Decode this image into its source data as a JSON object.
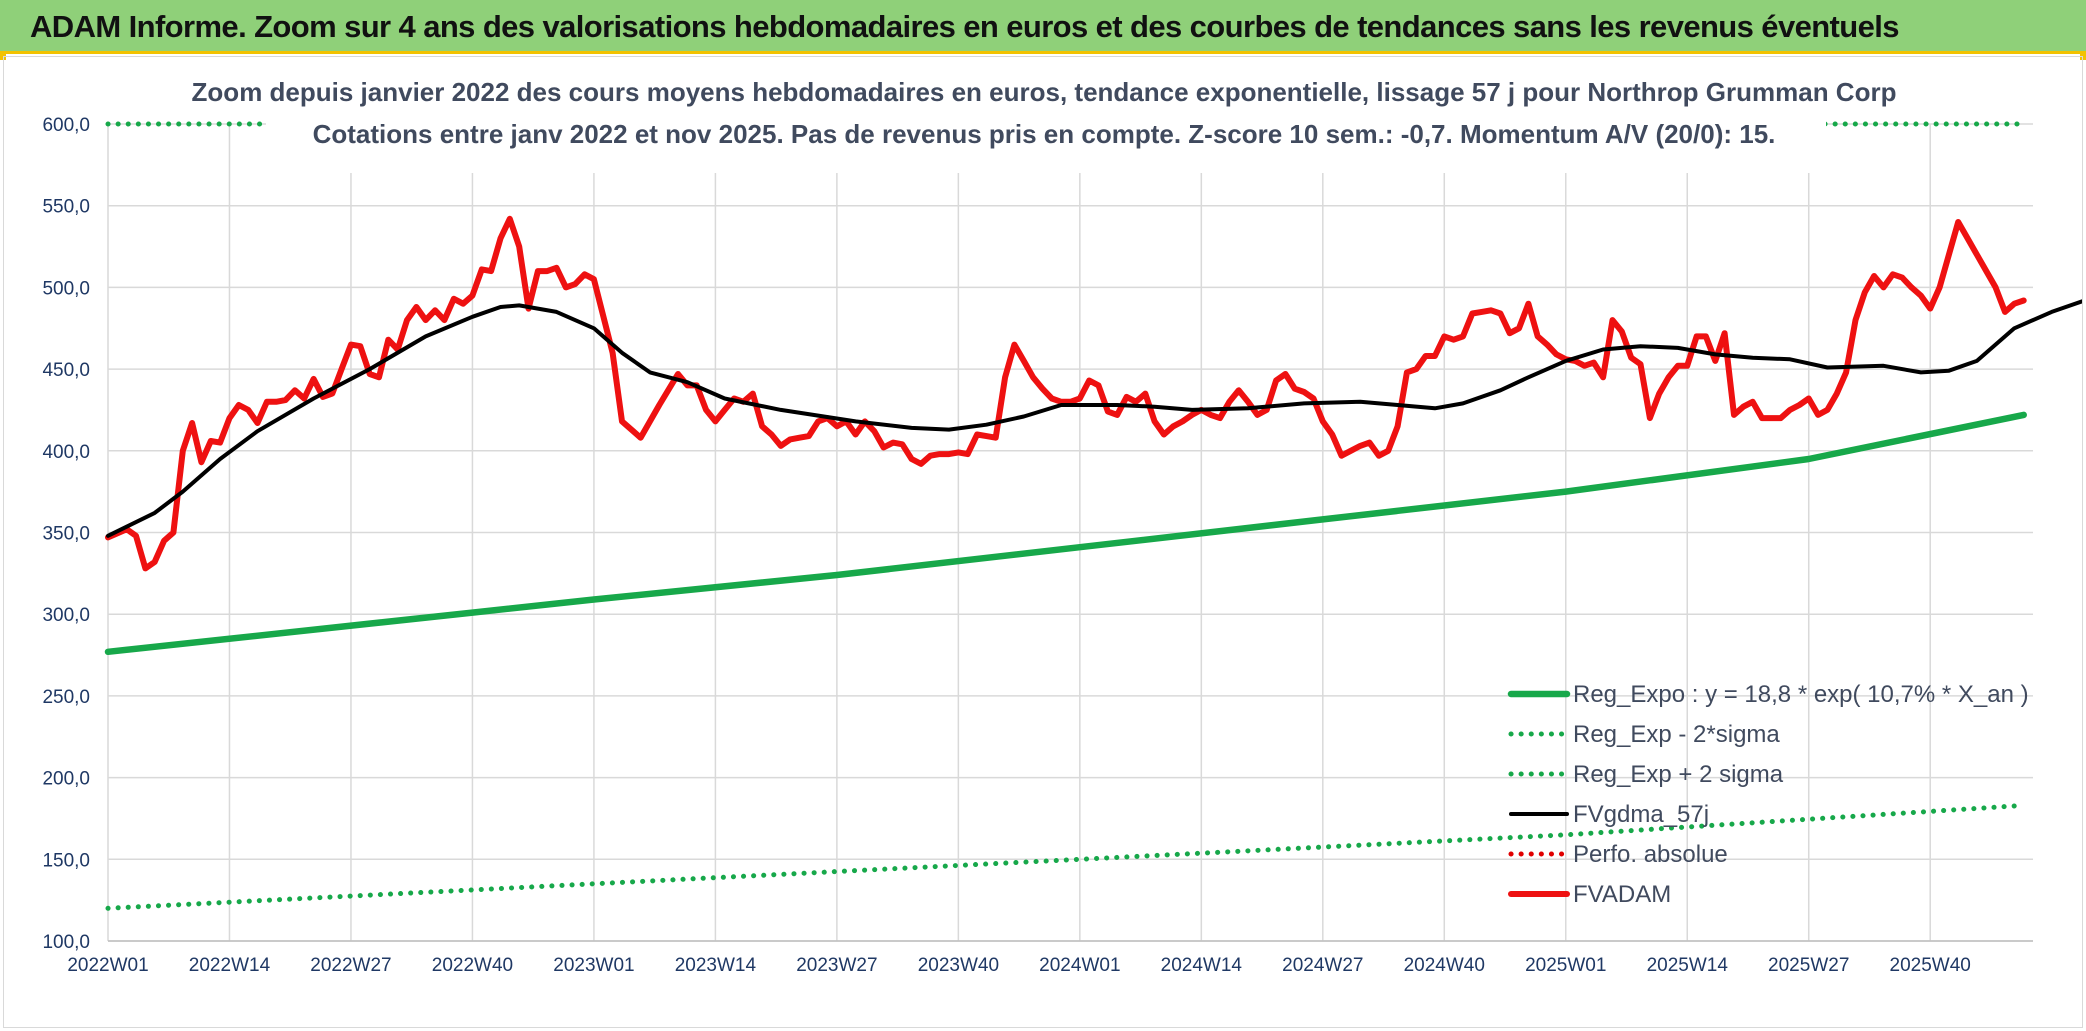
{
  "banner": {
    "title": "ADAM Informe. Zoom sur 4 ans des valorisations hebdomadaires en euros et des courbes de tendances sans les revenus éventuels"
  },
  "colors": {
    "banner_bg": "#8fd079",
    "banner_border": "#f2c200",
    "reg_expo": "#17a84a",
    "sigma": "#17a84a",
    "fvgdma": "#000000",
    "perfo": "#e00000",
    "fvadam": "#ee1111",
    "grid": "#d9d9d9",
    "axis_text": "#1f3864"
  },
  "chart_data": {
    "type": "line",
    "title": [
      "Zoom depuis janvier 2022 des cours moyens hebdomadaires en euros, tendance exponentielle, lissage 57 j pour Northrop Grumman Corp",
      "Cotations entre janv 2022 et nov 2025. Pas de revenus pris en compte. Z-score 10 sem.: -0,7. Momentum A/V (20/0): 15."
    ],
    "xlabel": "",
    "ylabel": "",
    "ylim": [
      100,
      600
    ],
    "yticks": [
      "100,0",
      "150,0",
      "200,0",
      "250,0",
      "300,0",
      "350,0",
      "400,0",
      "450,0",
      "500,0",
      "550,0",
      "600,0"
    ],
    "ytick_values": [
      100,
      150,
      200,
      250,
      300,
      350,
      400,
      450,
      500,
      550,
      600
    ],
    "xticks": [
      "2022W01",
      "2022W14",
      "2022W27",
      "2022W40",
      "2023W01",
      "2023W14",
      "2023W27",
      "2023W40",
      "2024W01",
      "2024W14",
      "2024W27",
      "2024W40",
      "2025W01",
      "2025W14",
      "2025W27",
      "2025W40"
    ],
    "x_week_count": 206,
    "x_tick_step": 13,
    "grid": true,
    "legend_position": "bottom-right",
    "series": [
      {
        "name": "Reg_Expo : y = 18,8 * exp( 10,7% *  X_an )",
        "style": "solid-thick",
        "color": "#17a84a",
        "points": [
          [
            0,
            277
          ],
          [
            39,
            301
          ],
          [
            52,
            309
          ],
          [
            78,
            324
          ],
          [
            104,
            341
          ],
          [
            130,
            358
          ],
          [
            156,
            375
          ],
          [
            182,
            395
          ],
          [
            205,
            422
          ]
        ]
      },
      {
        "name": "Reg_Exp - 2*sigma",
        "style": "dotted",
        "color": "#17a84a",
        "points": [
          [
            0,
            120
          ],
          [
            52,
            135
          ],
          [
            104,
            150
          ],
          [
            156,
            165
          ],
          [
            205,
            183
          ]
        ]
      },
      {
        "name": "Reg_Exp + 2 sigma",
        "style": "dotted",
        "color": "#17a84a",
        "points": [
          [
            0,
            600
          ],
          [
            205,
            600
          ]
        ]
      },
      {
        "name": "FVgdma_57j",
        "style": "solid",
        "color": "#000000",
        "points": [
          [
            0,
            348
          ],
          [
            5,
            362
          ],
          [
            8,
            375
          ],
          [
            12,
            395
          ],
          [
            16,
            412
          ],
          [
            22,
            432
          ],
          [
            28,
            450
          ],
          [
            34,
            470
          ],
          [
            39,
            482
          ],
          [
            42,
            488
          ],
          [
            44,
            489
          ],
          [
            48,
            485
          ],
          [
            52,
            475
          ],
          [
            55,
            460
          ],
          [
            58,
            448
          ],
          [
            62,
            442
          ],
          [
            66,
            432
          ],
          [
            72,
            425
          ],
          [
            80,
            418
          ],
          [
            86,
            414
          ],
          [
            90,
            413
          ],
          [
            94,
            416
          ],
          [
            98,
            421
          ],
          [
            102,
            428
          ],
          [
            108,
            428
          ],
          [
            112,
            427
          ],
          [
            116,
            425
          ],
          [
            122,
            426
          ],
          [
            128,
            429
          ],
          [
            134,
            430
          ],
          [
            138,
            428
          ],
          [
            142,
            426
          ],
          [
            145,
            429
          ],
          [
            149,
            437
          ],
          [
            152,
            445
          ],
          [
            156,
            455
          ],
          [
            160,
            462
          ],
          [
            164,
            464
          ],
          [
            168,
            463
          ],
          [
            172,
            459
          ],
          [
            176,
            457
          ],
          [
            180,
            456
          ],
          [
            184,
            451
          ],
          [
            190,
            452
          ],
          [
            194,
            448
          ],
          [
            197,
            449
          ],
          [
            200,
            455
          ],
          [
            204,
            475
          ],
          [
            208,
            485
          ],
          [
            213,
            495
          ],
          [
            218,
            493
          ],
          [
            222,
            495
          ]
        ]
      },
      {
        "name": "Perfo. absolue",
        "style": "dotted",
        "color": "#e00000",
        "points": []
      },
      {
        "name": "FVADAM",
        "style": "solid-thick",
        "color": "#ee1111",
        "points": [
          [
            0,
            347
          ],
          [
            2,
            352
          ],
          [
            3,
            348
          ],
          [
            4,
            328
          ],
          [
            5,
            332
          ],
          [
            6,
            345
          ],
          [
            7,
            350
          ],
          [
            8,
            400
          ],
          [
            9,
            417
          ],
          [
            10,
            393
          ],
          [
            11,
            406
          ],
          [
            12,
            405
          ],
          [
            13,
            420
          ],
          [
            14,
            428
          ],
          [
            15,
            425
          ],
          [
            16,
            417
          ],
          [
            17,
            430
          ],
          [
            18,
            430
          ],
          [
            19,
            431
          ],
          [
            20,
            437
          ],
          [
            21,
            432
          ],
          [
            22,
            444
          ],
          [
            23,
            433
          ],
          [
            24,
            435
          ],
          [
            25,
            450
          ],
          [
            26,
            465
          ],
          [
            27,
            464
          ],
          [
            28,
            447
          ],
          [
            29,
            445
          ],
          [
            30,
            468
          ],
          [
            31,
            462
          ],
          [
            32,
            480
          ],
          [
            33,
            488
          ],
          [
            34,
            480
          ],
          [
            35,
            486
          ],
          [
            36,
            480
          ],
          [
            37,
            493
          ],
          [
            38,
            490
          ],
          [
            39,
            495
          ],
          [
            40,
            511
          ],
          [
            41,
            510
          ],
          [
            42,
            530
          ],
          [
            43,
            542
          ],
          [
            44,
            525
          ],
          [
            45,
            487
          ],
          [
            46,
            510
          ],
          [
            47,
            510
          ],
          [
            48,
            512
          ],
          [
            49,
            500
          ],
          [
            50,
            502
          ],
          [
            51,
            508
          ],
          [
            52,
            505
          ],
          [
            54,
            460
          ],
          [
            55,
            418
          ],
          [
            57,
            408
          ],
          [
            59,
            428
          ],
          [
            61,
            447
          ],
          [
            62,
            440
          ],
          [
            63,
            440
          ],
          [
            64,
            425
          ],
          [
            65,
            418
          ],
          [
            66,
            425
          ],
          [
            67,
            432
          ],
          [
            68,
            430
          ],
          [
            69,
            435
          ],
          [
            70,
            415
          ],
          [
            71,
            410
          ],
          [
            72,
            403
          ],
          [
            73,
            407
          ],
          [
            74,
            408
          ],
          [
            75,
            409
          ],
          [
            76,
            418
          ],
          [
            77,
            420
          ],
          [
            78,
            415
          ],
          [
            79,
            418
          ],
          [
            80,
            410
          ],
          [
            81,
            418
          ],
          [
            82,
            412
          ],
          [
            83,
            402
          ],
          [
            84,
            405
          ],
          [
            85,
            404
          ],
          [
            86,
            395
          ],
          [
            87,
            392
          ],
          [
            88,
            397
          ],
          [
            89,
            398
          ],
          [
            90,
            398
          ],
          [
            91,
            399
          ],
          [
            92,
            398
          ],
          [
            93,
            410
          ],
          [
            94,
            409
          ],
          [
            95,
            408
          ],
          [
            96,
            445
          ],
          [
            97,
            465
          ],
          [
            98,
            455
          ],
          [
            99,
            445
          ],
          [
            100,
            438
          ],
          [
            101,
            432
          ],
          [
            102,
            430
          ],
          [
            103,
            430
          ],
          [
            104,
            432
          ],
          [
            105,
            443
          ],
          [
            106,
            440
          ],
          [
            107,
            424
          ],
          [
            108,
            422
          ],
          [
            109,
            433
          ],
          [
            110,
            430
          ],
          [
            111,
            435
          ],
          [
            112,
            418
          ],
          [
            113,
            410
          ],
          [
            114,
            415
          ],
          [
            115,
            418
          ],
          [
            116,
            422
          ],
          [
            117,
            425
          ],
          [
            118,
            422
          ],
          [
            119,
            420
          ],
          [
            120,
            430
          ],
          [
            121,
            437
          ],
          [
            122,
            430
          ],
          [
            123,
            422
          ],
          [
            124,
            425
          ],
          [
            125,
            443
          ],
          [
            126,
            447
          ],
          [
            127,
            438
          ],
          [
            128,
            436
          ],
          [
            129,
            432
          ],
          [
            130,
            418
          ],
          [
            131,
            410
          ],
          [
            132,
            397
          ],
          [
            133,
            400
          ],
          [
            134,
            403
          ],
          [
            135,
            405
          ],
          [
            136,
            397
          ],
          [
            137,
            400
          ],
          [
            138,
            415
          ],
          [
            139,
            448
          ],
          [
            140,
            450
          ],
          [
            141,
            458
          ],
          [
            142,
            458
          ],
          [
            143,
            470
          ],
          [
            144,
            468
          ],
          [
            145,
            470
          ],
          [
            146,
            484
          ],
          [
            147,
            485
          ],
          [
            148,
            486
          ],
          [
            149,
            484
          ],
          [
            150,
            472
          ],
          [
            151,
            475
          ],
          [
            152,
            490
          ],
          [
            153,
            470
          ],
          [
            154,
            465
          ],
          [
            155,
            459
          ],
          [
            156,
            456
          ],
          [
            157,
            455
          ],
          [
            158,
            452
          ],
          [
            159,
            454
          ],
          [
            160,
            445
          ],
          [
            161,
            480
          ],
          [
            162,
            473
          ],
          [
            163,
            457
          ],
          [
            164,
            453
          ],
          [
            165,
            420
          ],
          [
            166,
            435
          ],
          [
            167,
            445
          ],
          [
            168,
            452
          ],
          [
            169,
            452
          ],
          [
            170,
            470
          ],
          [
            171,
            470
          ],
          [
            172,
            455
          ],
          [
            173,
            472
          ],
          [
            174,
            422
          ],
          [
            175,
            427
          ],
          [
            176,
            430
          ],
          [
            177,
            420
          ],
          [
            178,
            420
          ],
          [
            179,
            420
          ],
          [
            180,
            425
          ],
          [
            181,
            428
          ],
          [
            182,
            432
          ],
          [
            183,
            422
          ],
          [
            184,
            425
          ],
          [
            185,
            435
          ],
          [
            186,
            448
          ],
          [
            187,
            480
          ],
          [
            188,
            497
          ],
          [
            189,
            507
          ],
          [
            190,
            500
          ],
          [
            191,
            508
          ],
          [
            192,
            506
          ],
          [
            193,
            500
          ],
          [
            194,
            495
          ],
          [
            195,
            487
          ],
          [
            196,
            500
          ],
          [
            197,
            520
          ],
          [
            198,
            540
          ],
          [
            199,
            530
          ],
          [
            200,
            520
          ],
          [
            201,
            510
          ],
          [
            202,
            500
          ],
          [
            203,
            485
          ],
          [
            204,
            490
          ],
          [
            205,
            492
          ]
        ]
      }
    ]
  }
}
